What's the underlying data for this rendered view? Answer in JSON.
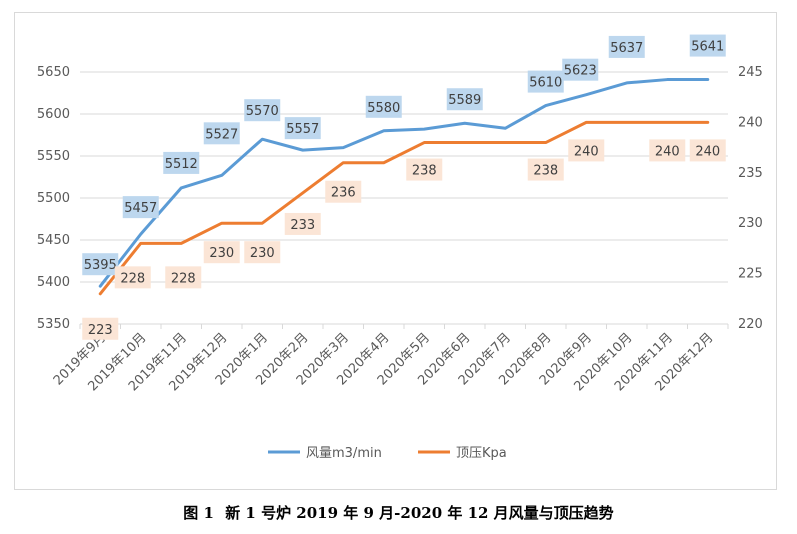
{
  "chart_data": {
    "type": "line",
    "title": "",
    "categories": [
      "2019年9月",
      "2019年10月",
      "2019年11月",
      "2019年12月",
      "2020年1月",
      "2020年2月",
      "2020年3月",
      "2020年4月",
      "2020年5月",
      "2020年6月",
      "2020年7月",
      "2020年8月",
      "2020年9月",
      "2020年10月",
      "2020年11月",
      "2020年12月"
    ],
    "series": [
      {
        "name": "风量m3/min",
        "axis": "left",
        "color": "#5b9bd5",
        "label_bg": "#bdd7ee",
        "values": [
          5395,
          5457,
          5512,
          5527,
          5570,
          5557,
          5560,
          5580,
          5582,
          5589,
          5583,
          5610,
          5623,
          5637,
          5641,
          5641
        ],
        "labels": [
          "5395",
          "5457",
          "5512",
          "5527",
          "5570",
          "5557",
          "",
          "5580",
          "",
          "5589",
          "",
          "5610",
          "5623",
          "5637",
          "",
          "5641"
        ]
      },
      {
        "name": "顶压Kpa",
        "axis": "right",
        "color": "#ed7d31",
        "label_bg": "#fbe5d6",
        "values": [
          223,
          228,
          228,
          230,
          230,
          233,
          236,
          236,
          238,
          238,
          238,
          238,
          240,
          240,
          240,
          240
        ],
        "labels": [
          "223",
          "228",
          "228",
          "230",
          "230",
          "233",
          "236",
          "",
          "238",
          "",
          "",
          "238",
          "240",
          "",
          "240",
          "240"
        ]
      }
    ],
    "y_left": {
      "min": 5350,
      "max": 5650,
      "ticks": [
        "5350",
        "5400",
        "5450",
        "5500",
        "5550",
        "5600",
        "5650"
      ]
    },
    "y_right": {
      "min": 220,
      "max": 245,
      "ticks": [
        "220",
        "225",
        "230",
        "235",
        "240",
        "245"
      ]
    },
    "legend": "bottom-center"
  },
  "caption": {
    "figure": "图 1",
    "text": "新 1 号炉 2019 年 9 月-2020 年 12 月风量与顶压趋势"
  }
}
